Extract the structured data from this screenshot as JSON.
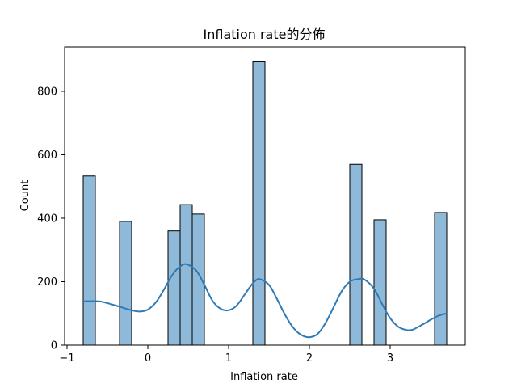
{
  "chart_data": {
    "type": "bar",
    "title": "Inflation rate的分佈",
    "xlabel": "Inflation rate",
    "ylabel": "Count",
    "xlim": [
      -1.03,
      3.93
    ],
    "ylim": [
      0,
      940
    ],
    "x_ticks": [
      -1,
      0,
      1,
      2,
      3
    ],
    "x_tick_labels": [
      "−1",
      "0",
      "1",
      "2",
      "3"
    ],
    "y_ticks": [
      0,
      200,
      400,
      600,
      800
    ],
    "y_tick_labels": [
      "0",
      "200",
      "400",
      "600",
      "800"
    ],
    "grid": false,
    "bins": [
      {
        "x0": -0.8,
        "x1": -0.65,
        "count": 533
      },
      {
        "x0": -0.35,
        "x1": -0.2,
        "count": 390
      },
      {
        "x0": 0.25,
        "x1": 0.4,
        "count": 360
      },
      {
        "x0": 0.4,
        "x1": 0.55,
        "count": 443
      },
      {
        "x0": 0.55,
        "x1": 0.7,
        "count": 413
      },
      {
        "x0": 1.3,
        "x1": 1.45,
        "count": 893
      },
      {
        "x0": 2.5,
        "x1": 2.65,
        "count": 570
      },
      {
        "x0": 2.8,
        "x1": 2.95,
        "count": 395
      },
      {
        "x0": 3.55,
        "x1": 3.7,
        "count": 418
      }
    ],
    "kde": {
      "x": [
        -0.8,
        -0.6,
        -0.4,
        -0.2,
        -0.1,
        0.0,
        0.1,
        0.2,
        0.3,
        0.4,
        0.48,
        0.6,
        0.7,
        0.8,
        0.9,
        1.0,
        1.1,
        1.2,
        1.3,
        1.38,
        1.5,
        1.6,
        1.7,
        1.8,
        1.9,
        2.0,
        2.1,
        2.2,
        2.3,
        2.4,
        2.5,
        2.6,
        2.68,
        2.8,
        2.9,
        3.0,
        3.1,
        3.2,
        3.28,
        3.4,
        3.5,
        3.6,
        3.7
      ],
      "y": [
        138,
        138,
        125,
        110,
        106,
        112,
        135,
        175,
        220,
        248,
        255,
        235,
        190,
        140,
        115,
        110,
        125,
        160,
        195,
        208,
        190,
        145,
        95,
        55,
        32,
        25,
        35,
        70,
        120,
        170,
        200,
        208,
        207,
        178,
        130,
        85,
        58,
        48,
        49,
        65,
        80,
        93,
        100
      ]
    },
    "colors": {
      "bar_fill": "#8fb9d9",
      "bar_edge": "#000000",
      "kde_line": "#2f7ab5"
    }
  }
}
